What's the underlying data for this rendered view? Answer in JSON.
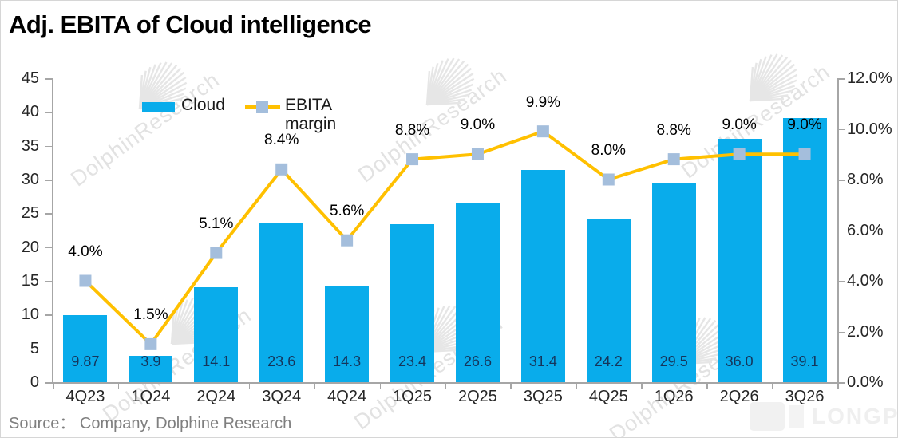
{
  "title": "Adj. EBITA of Cloud intelligence",
  "source": "Source：  Company, Dolphine Research",
  "watermark": {
    "text": "DolphinResearch",
    "brand": "LONGPORT"
  },
  "legend": [
    {
      "label": "Cloud",
      "type": "bar"
    },
    {
      "label": "EBITA margin",
      "type": "line"
    }
  ],
  "colors": {
    "bar": "#09aceb",
    "line": "#ffc000",
    "marker": "#a4bedc",
    "bar_label": "#15355b",
    "axis": "#a6a6a6",
    "axis_text": "#262626",
    "source_text": "#7f7f7f",
    "watermark": "#e2e2e2"
  },
  "chart_data": {
    "type": "bar+line combo",
    "title": "Adj. EBITA of Cloud intelligence",
    "categories": [
      "4Q23",
      "1Q24",
      "2Q24",
      "3Q24",
      "4Q24",
      "1Q25",
      "2Q25",
      "3Q25",
      "4Q25",
      "1Q26",
      "2Q26",
      "3Q26"
    ],
    "series": [
      {
        "name": "Cloud",
        "type": "bar",
        "axis": "left",
        "values": [
          9.87,
          3.9,
          14.1,
          23.6,
          14.3,
          23.4,
          26.6,
          31.4,
          24.2,
          29.5,
          36.0,
          39.1
        ],
        "labels": [
          "9.87",
          "3.9",
          "14.1",
          "23.6",
          "14.3",
          "23.4",
          "26.6",
          "31.4",
          "24.2",
          "29.5",
          "36.0",
          "39.1"
        ]
      },
      {
        "name": "EBITA margin",
        "type": "line",
        "axis": "right",
        "values": [
          4.0,
          1.5,
          5.1,
          8.4,
          5.6,
          8.8,
          9.0,
          9.9,
          8.0,
          8.8,
          9.0,
          9.0
        ],
        "labels": [
          "4.0%",
          "1.5%",
          "5.1%",
          "8.4%",
          "5.6%",
          "8.8%",
          "9.0%",
          "9.9%",
          "8.0%",
          "8.8%",
          "9.0%",
          "9.0%"
        ]
      }
    ],
    "left_axis": {
      "min": 0,
      "max": 45,
      "step": 5,
      "ticks": [
        "0",
        "5",
        "10",
        "15",
        "20",
        "25",
        "30",
        "35",
        "40",
        "45"
      ]
    },
    "right_axis": {
      "min": 0,
      "max": 12,
      "step": 2,
      "ticks": [
        "0.0%",
        "2.0%",
        "4.0%",
        "6.0%",
        "8.0%",
        "10.0%",
        "12.0%"
      ]
    },
    "grid": false,
    "legend_position": "top-inside-left"
  }
}
